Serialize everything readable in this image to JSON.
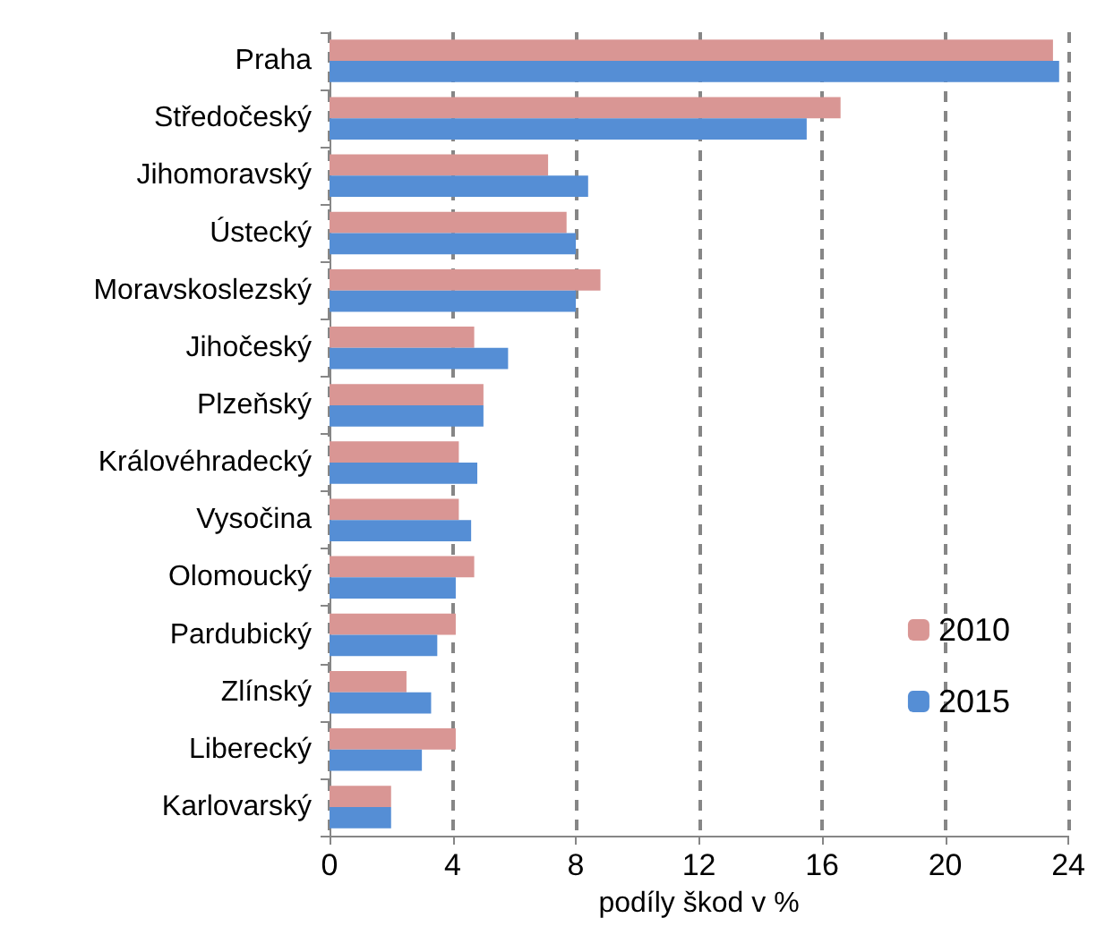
{
  "chart_data": {
    "type": "bar",
    "orientation": "horizontal",
    "xlabel": "podíly škod v %",
    "categories": [
      "Praha",
      "Středočeský",
      "Jihomoravský",
      "Ústecký",
      "Moravskoslezský",
      "Jihočeský",
      "Plzeňský",
      "Královéhradecký",
      "Vysočina",
      "Olomoucký",
      "Pardubický",
      "Zlínský",
      "Liberecký",
      "Karlovarský"
    ],
    "series": [
      {
        "name": "2010",
        "color": "#d99694",
        "values": [
          23.5,
          16.6,
          7.1,
          7.7,
          8.8,
          4.7,
          5.0,
          4.2,
          4.2,
          4.7,
          4.1,
          2.5,
          4.1,
          2.0
        ]
      },
      {
        "name": "2015",
        "color": "#558ed5",
        "values": [
          23.7,
          15.5,
          8.4,
          8.0,
          8.0,
          5.8,
          5.0,
          4.8,
          4.6,
          4.1,
          3.5,
          3.3,
          3.0,
          2.0
        ]
      }
    ],
    "xlim": [
      0,
      24
    ],
    "xticks": [
      0,
      4,
      8,
      12,
      16,
      20,
      24
    ],
    "grid": "x",
    "legend": "bottom right"
  }
}
